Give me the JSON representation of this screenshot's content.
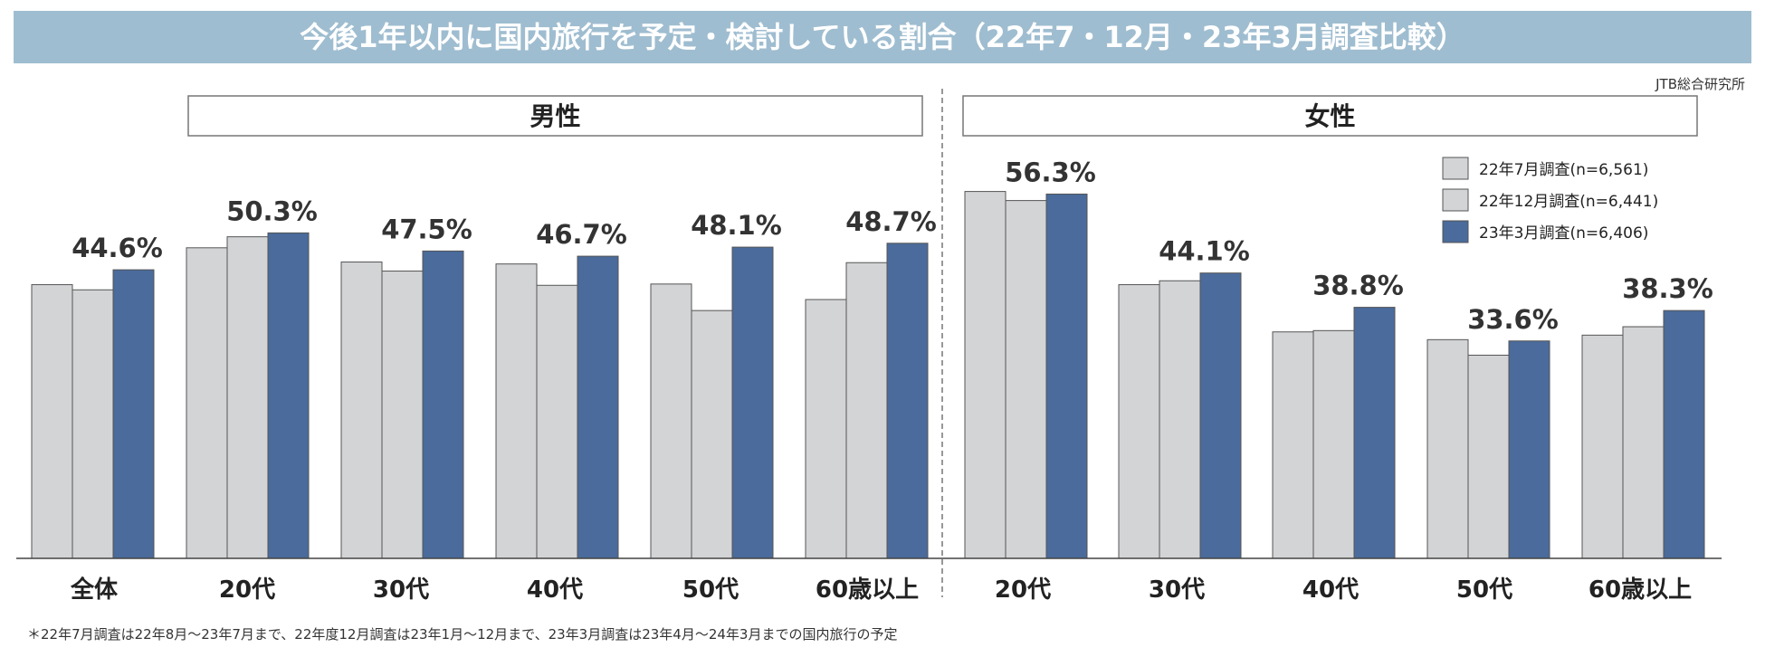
{
  "header": {
    "title": "今後1年以内に国内旅行を予定・検討している割合（22年7・12月・23年3月調査比較）",
    "source": "JTB総合研究所"
  },
  "footnote": "＊22年7月調査は22年8月～23年7月まで、22年度12月調査は23年1月～12月まで、23年3月調査は23年4月～24年3月までの国内旅行の予定",
  "colors": {
    "gray": "#d3d4d6",
    "blue": "#4a6b9b",
    "title_bg": "#9fbdd0"
  },
  "chart_data": {
    "type": "bar",
    "groups": [
      {
        "label": "男性",
        "categories": [
          "全体",
          "20代",
          "30代",
          "40代",
          "50代",
          "60歳以上"
        ]
      },
      {
        "label": "女性",
        "categories": [
          "20代",
          "30代",
          "40代",
          "50代",
          "60歳以上"
        ]
      }
    ],
    "categories": [
      "全体",
      "20代",
      "30代",
      "40代",
      "50代",
      "60歳以上",
      "20代",
      "30代",
      "40代",
      "50代",
      "60歳以上"
    ],
    "series": [
      {
        "name": "22年7月調査(n=6,561)",
        "color": "#d3d4d6",
        "values": [
          42.3,
          48.0,
          45.8,
          45.5,
          42.4,
          40.0,
          56.7,
          42.3,
          35.0,
          33.8,
          34.5
        ]
      },
      {
        "name": "22年12月調査(n=6,441)",
        "color": "#d3d4d6",
        "values": [
          41.5,
          49.7,
          44.4,
          42.2,
          38.3,
          45.7,
          55.3,
          42.9,
          35.2,
          31.4,
          35.8
        ]
      },
      {
        "name": "23年3月調査(n=6,406)",
        "color": "#4a6b9b",
        "values": [
          44.6,
          50.3,
          47.5,
          46.7,
          48.1,
          48.7,
          56.3,
          44.1,
          38.8,
          33.6,
          38.3
        ],
        "labels": [
          "44.6%",
          "50.3%",
          "47.5%",
          "46.7%",
          "48.1%",
          "48.7%",
          "56.3%",
          "44.1%",
          "38.8%",
          "33.6%",
          "38.3%"
        ]
      }
    ],
    "ylim": [
      0,
      60
    ],
    "legend": "top-right"
  }
}
